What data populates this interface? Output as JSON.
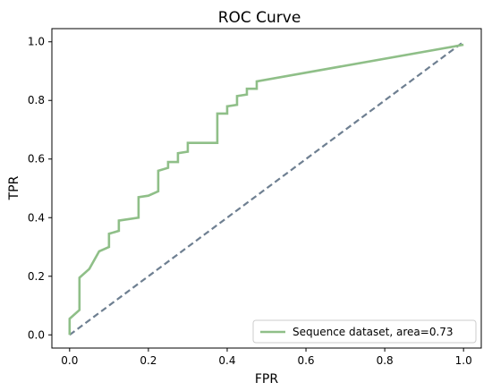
{
  "chart_data": {
    "type": "line",
    "title": "ROC Curve",
    "xlabel": "FPR",
    "ylabel": "TPR",
    "xlim": [
      -0.045,
      1.045
    ],
    "ylim": [
      -0.045,
      1.045
    ],
    "xticks": [
      "0.0",
      "0.2",
      "0.4",
      "0.6",
      "0.8",
      "1.0"
    ],
    "yticks": [
      "0.0",
      "0.2",
      "0.4",
      "0.6",
      "0.8",
      "1.0"
    ],
    "grid": false,
    "legend_position": "lower-right",
    "series": [
      {
        "name": "Sequence dataset, area=0.73",
        "color": "#8fbf88",
        "x": [
          0.0,
          0.0,
          0.025,
          0.025,
          0.05,
          0.075,
          0.1,
          0.1,
          0.125,
          0.125,
          0.175,
          0.175,
          0.2,
          0.225,
          0.225,
          0.25,
          0.25,
          0.275,
          0.275,
          0.3,
          0.3,
          0.375,
          0.375,
          0.4,
          0.4,
          0.425,
          0.425,
          0.45,
          0.45,
          0.475,
          0.475,
          1.0
        ],
        "y": [
          0.0,
          0.055,
          0.085,
          0.195,
          0.225,
          0.285,
          0.3,
          0.345,
          0.355,
          0.39,
          0.4,
          0.47,
          0.475,
          0.49,
          0.56,
          0.57,
          0.59,
          0.59,
          0.62,
          0.625,
          0.655,
          0.655,
          0.755,
          0.755,
          0.78,
          0.785,
          0.815,
          0.82,
          0.84,
          0.84,
          0.865,
          0.99
        ]
      },
      {
        "name": "",
        "color": "#6e7f91",
        "dashed": true,
        "x": [
          0.0,
          1.0
        ],
        "y": [
          0.0,
          1.0
        ]
      }
    ]
  }
}
